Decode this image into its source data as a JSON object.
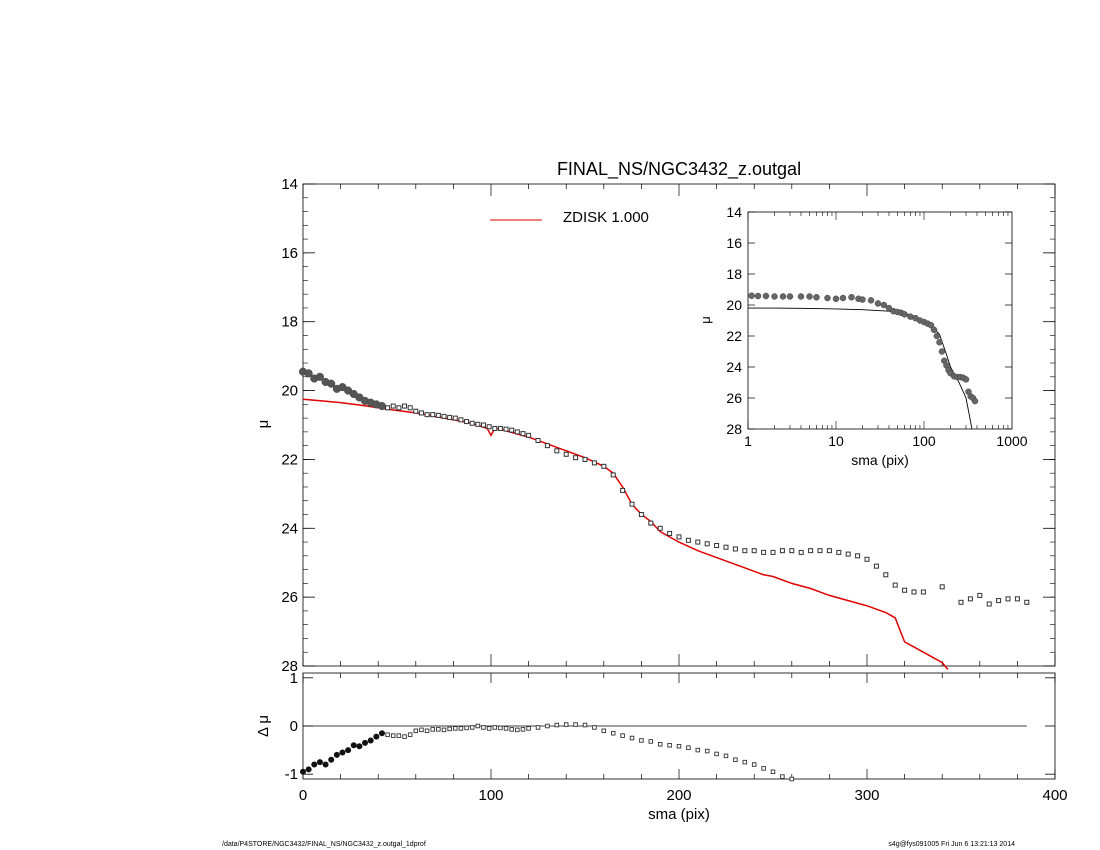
{
  "footer": {
    "left": "/data/P4STORE/NGC3432/FINAL_NS/NGC3432_z.outgal_1dprof",
    "right": "s4g@fys091005  Fri Jun  6 13:21:13 2014"
  },
  "colors": {
    "model": "#e00000",
    "points": "#000000",
    "inset_model": "#000000"
  },
  "chart_data": [
    {
      "id": "main",
      "type": "scatter",
      "title": "FINAL_NS/NGC3432_z.outgal",
      "xlabel": "",
      "ylabel": "μ",
      "xlim": [
        0,
        400
      ],
      "ylim": [
        28,
        14
      ],
      "yticks": [
        14,
        16,
        18,
        20,
        22,
        24,
        26,
        28
      ],
      "legend": {
        "placement": "top-center",
        "label": "ZDISK  1.000",
        "color": "#e00000"
      },
      "series": [
        {
          "kind": "points",
          "x": [
            0,
            3,
            6,
            9,
            12,
            15,
            18,
            21,
            24,
            27,
            30,
            33,
            36,
            39,
            42,
            45,
            48,
            51,
            54,
            57,
            60,
            63,
            66,
            69,
            72,
            75,
            78,
            81,
            84,
            87,
            90,
            93,
            96,
            99,
            102,
            105,
            108,
            111,
            114,
            117,
            120,
            125,
            130,
            135,
            140,
            145,
            150,
            155,
            160,
            165,
            170,
            175,
            180,
            185,
            190,
            195,
            200,
            205,
            210,
            215,
            220,
            225,
            230,
            235,
            240,
            245,
            250,
            255,
            260,
            265,
            270,
            275,
            280,
            285,
            290,
            295,
            300,
            305,
            310,
            315,
            320,
            325,
            330,
            340,
            350,
            355,
            360,
            365,
            370,
            375,
            380,
            385
          ],
          "y": [
            19.45,
            19.5,
            19.65,
            19.6,
            19.75,
            19.8,
            19.95,
            19.9,
            20.0,
            20.1,
            20.2,
            20.3,
            20.35,
            20.4,
            20.45,
            20.5,
            20.45,
            20.5,
            20.45,
            20.5,
            20.6,
            20.65,
            20.7,
            20.7,
            20.72,
            20.75,
            20.78,
            20.8,
            20.85,
            20.9,
            20.95,
            20.98,
            21.0,
            21.05,
            21.1,
            21.1,
            21.12,
            21.15,
            21.2,
            21.25,
            21.3,
            21.45,
            21.6,
            21.75,
            21.85,
            21.95,
            22.0,
            22.1,
            22.2,
            22.45,
            22.9,
            23.3,
            23.6,
            23.85,
            24.0,
            24.15,
            24.25,
            24.35,
            24.4,
            24.45,
            24.5,
            24.55,
            24.6,
            24.65,
            24.65,
            24.7,
            24.7,
            24.65,
            24.65,
            24.7,
            24.65,
            24.65,
            24.65,
            24.7,
            24.75,
            24.8,
            24.9,
            25.1,
            25.35,
            25.65,
            25.8,
            25.85,
            25.85,
            25.7,
            26.15,
            26.05,
            25.95,
            26.2,
            26.1,
            26.05,
            26.05,
            26.15
          ],
          "y_err": [
            0.02,
            0.02,
            0.02,
            0.02,
            0.02,
            0.02,
            0.02,
            0.02,
            0.02,
            0.02,
            0.02,
            0.02,
            0.02,
            0.02,
            0.02,
            0.02,
            0.02,
            0.02,
            0.02,
            0.02,
            0.02,
            0.02,
            0.02,
            0.02,
            0.02,
            0.02,
            0.02,
            0.02,
            0.02,
            0.02,
            0.02,
            0.02,
            0.02,
            0.02,
            0.02,
            0.02,
            0.02,
            0.02,
            0.02,
            0.02,
            0.02,
            0.02,
            0.02,
            0.02,
            0.02,
            0.02,
            0.02,
            0.02,
            0.02,
            0.02,
            0.02,
            0.02,
            0.02,
            0.02,
            0.02,
            0.02,
            0.02,
            0.02,
            0.02,
            0.02,
            0.02,
            0.02,
            0.02,
            0.02,
            0.02,
            0.02,
            0.02,
            0.02,
            0.02,
            0.02,
            0.02,
            0.02,
            0.02,
            0.02,
            0.02,
            0.02,
            0.02,
            0.02,
            0.02,
            0.02,
            0.02,
            0.02,
            0.02,
            0.02,
            0.02,
            0.02,
            0.02,
            0.02,
            0.02,
            0.02,
            0.02,
            0.02
          ]
        },
        {
          "name": "ZDISK  1.000",
          "kind": "line",
          "x": [
            0,
            10,
            20,
            30,
            40,
            50,
            60,
            70,
            80,
            90,
            95,
            98,
            100,
            102,
            105,
            110,
            120,
            130,
            140,
            150,
            160,
            165,
            170,
            175,
            180,
            185,
            190,
            200,
            210,
            220,
            230,
            240,
            245,
            250,
            260,
            270,
            280,
            290,
            300,
            310,
            315,
            320,
            330,
            340,
            343
          ],
          "y": [
            20.25,
            20.3,
            20.35,
            20.42,
            20.5,
            20.58,
            20.65,
            20.75,
            20.85,
            20.95,
            21.05,
            21.1,
            21.3,
            21.1,
            21.12,
            21.2,
            21.35,
            21.55,
            21.75,
            21.95,
            22.2,
            22.4,
            22.8,
            23.3,
            23.6,
            23.8,
            24.1,
            24.4,
            24.65,
            24.85,
            25.05,
            25.25,
            25.35,
            25.4,
            25.6,
            25.75,
            25.95,
            26.1,
            26.25,
            26.45,
            26.6,
            27.3,
            27.6,
            27.9,
            28.1
          ]
        }
      ]
    },
    {
      "id": "residual",
      "type": "scatter",
      "xlabel": "sma (pix)",
      "ylabel": "Δ μ",
      "xlim": [
        0,
        400
      ],
      "ylim": [
        -1.1,
        1.1
      ],
      "xticks": [
        0,
        100,
        200,
        300,
        400
      ],
      "yticks": [
        -1,
        0,
        1
      ],
      "zero_line": {
        "x_range": [
          0,
          385
        ],
        "y": 0
      },
      "series": [
        {
          "kind": "points",
          "x": [
            0,
            3,
            6,
            9,
            12,
            15,
            18,
            21,
            24,
            27,
            30,
            33,
            36,
            39,
            42,
            45,
            48,
            51,
            54,
            57,
            60,
            63,
            66,
            69,
            72,
            75,
            78,
            81,
            84,
            87,
            90,
            93,
            96,
            99,
            102,
            105,
            108,
            111,
            114,
            117,
            120,
            125,
            130,
            135,
            140,
            145,
            150,
            155,
            160,
            165,
            170,
            175,
            180,
            185,
            190,
            195,
            200,
            205,
            210,
            215,
            220,
            225,
            230,
            235,
            240,
            245,
            250,
            255,
            260
          ],
          "y": [
            -0.95,
            -0.9,
            -0.8,
            -0.75,
            -0.8,
            -0.7,
            -0.6,
            -0.55,
            -0.5,
            -0.4,
            -0.42,
            -0.35,
            -0.3,
            -0.22,
            -0.15,
            -0.18,
            -0.2,
            -0.2,
            -0.22,
            -0.18,
            -0.1,
            -0.08,
            -0.1,
            -0.07,
            -0.07,
            -0.08,
            -0.06,
            -0.05,
            -0.05,
            -0.04,
            -0.03,
            0.0,
            -0.03,
            -0.05,
            -0.03,
            -0.04,
            -0.05,
            -0.07,
            -0.08,
            -0.07,
            -0.05,
            -0.03,
            0.0,
            0.02,
            0.03,
            0.03,
            0.02,
            -0.03,
            -0.1,
            -0.15,
            -0.2,
            -0.25,
            -0.3,
            -0.32,
            -0.38,
            -0.4,
            -0.42,
            -0.45,
            -0.5,
            -0.52,
            -0.58,
            -0.62,
            -0.7,
            -0.75,
            -0.8,
            -0.88,
            -0.95,
            -1.05,
            -1.1
          ]
        }
      ]
    },
    {
      "id": "inset",
      "type": "scatter",
      "xlabel": "sma (pix)",
      "ylabel": "μ",
      "xscale": "log",
      "xlim": [
        1,
        1000
      ],
      "ylim": [
        28,
        14
      ],
      "xticks": [
        1,
        10,
        100,
        1000
      ],
      "yticks": [
        14,
        16,
        18,
        20,
        22,
        24,
        26,
        28
      ],
      "series": [
        {
          "kind": "points",
          "x": [
            1.1,
            1.3,
            1.6,
            2,
            2.5,
            3,
            4,
            5,
            6,
            8,
            10,
            12,
            15,
            18,
            20,
            25,
            30,
            35,
            40,
            45,
            50,
            55,
            60,
            70,
            80,
            90,
            100,
            110,
            120,
            130,
            140,
            150,
            160,
            170,
            180,
            190,
            200,
            220,
            240,
            260,
            280,
            300,
            320,
            340,
            360,
            380
          ],
          "y": [
            19.4,
            19.42,
            19.42,
            19.45,
            19.45,
            19.45,
            19.45,
            19.45,
            19.5,
            19.55,
            19.6,
            19.55,
            19.5,
            19.6,
            19.65,
            19.7,
            19.9,
            20.0,
            20.2,
            20.4,
            20.45,
            20.5,
            20.6,
            20.75,
            20.85,
            21.0,
            21.1,
            21.2,
            21.3,
            21.6,
            22.0,
            22.4,
            23.0,
            23.6,
            23.9,
            24.2,
            24.4,
            24.6,
            24.65,
            24.65,
            24.7,
            24.8,
            25.6,
            25.9,
            26.0,
            26.2
          ]
        },
        {
          "kind": "line",
          "x": [
            1,
            2,
            5,
            10,
            20,
            40,
            60,
            80,
            100,
            120,
            150,
            180,
            200,
            250,
            300,
            330,
            350
          ],
          "y": [
            20.2,
            20.2,
            20.22,
            20.25,
            20.3,
            20.4,
            20.55,
            20.75,
            21.0,
            21.3,
            21.9,
            23.2,
            24.0,
            25.0,
            26.0,
            27.2,
            28.0
          ]
        }
      ]
    }
  ]
}
